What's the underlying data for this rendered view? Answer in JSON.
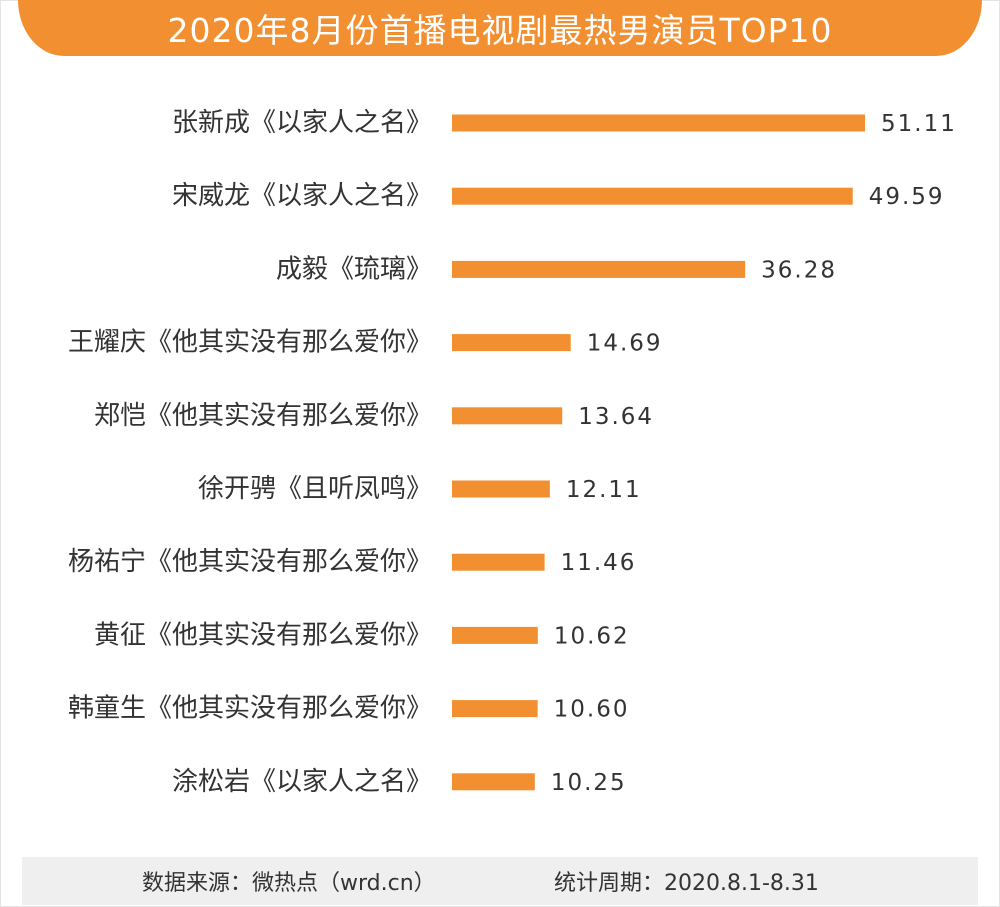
{
  "title": "2020年8月份首播电视剧最热男演员TOP10",
  "footer": {
    "source": "数据来源：微热点（wrd.cn）",
    "period": "统计周期：2020.8.1-8.31"
  },
  "colors": {
    "accent": "#f28f30",
    "bar": "#f28f30",
    "text": "#333333",
    "footer_bg": "#efefef"
  },
  "chart_data": {
    "type": "bar",
    "orientation": "horizontal",
    "title": "2020年8月份首播电视剧最热男演员TOP10",
    "categories": [
      "张新成《以家人之名》",
      "宋威龙《以家人之名》",
      "成毅《琉璃》",
      "王耀庆《他其实没有那么爱你》",
      "郑恺《他其实没有那么爱你》",
      "徐开骋《且听凤鸣》",
      "杨祐宁《他其实没有那么爱你》",
      "黄征《他其实没有那么爱你》",
      "韩童生《他其实没有那么爱你》",
      "涂松岩《以家人之名》"
    ],
    "values": [
      51.11,
      49.59,
      36.28,
      14.69,
      13.64,
      12.11,
      11.46,
      10.62,
      10.6,
      10.25
    ],
    "value_labels": [
      "51.11",
      "49.59",
      "36.28",
      "14.69",
      "13.64",
      "12.11",
      "11.46",
      "10.62",
      "10.60",
      "10.25"
    ],
    "xlim": [
      0,
      51.11
    ],
    "grid": false,
    "legend": "none"
  }
}
